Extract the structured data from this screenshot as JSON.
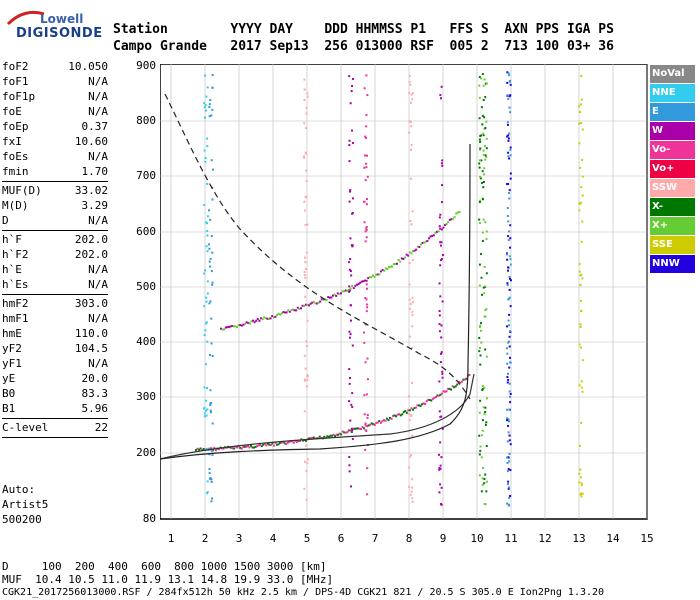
{
  "logo": {
    "line1": "Lowell",
    "line2": "DIGISONDE"
  },
  "header": {
    "labels": "Station        YYYY DAY    DDD HHMMSS P1   FFS S  AXN PPS IGA PS",
    "values": "Campo Grande   2017 Sep13  256 013000 RSF  005 2  713 100 03+ 36"
  },
  "params": [
    [
      {
        "k": "foF2",
        "v": "10.050"
      },
      {
        "k": "foF1",
        "v": "N/A"
      },
      {
        "k": "foF1p",
        "v": "N/A"
      },
      {
        "k": "foE",
        "v": "N/A"
      },
      {
        "k": "foEp",
        "v": "0.37"
      },
      {
        "k": "fxI",
        "v": "10.60"
      },
      {
        "k": "foEs",
        "v": "N/A"
      },
      {
        "k": "fmin",
        "v": "1.70"
      }
    ],
    [
      {
        "k": "MUF(D)",
        "v": "33.02"
      },
      {
        "k": "M(D)",
        "v": "3.29"
      },
      {
        "k": "D",
        "v": "N/A"
      }
    ],
    [
      {
        "k": "h`F",
        "v": "202.0"
      },
      {
        "k": "h`F2",
        "v": "202.0"
      },
      {
        "k": "h`E",
        "v": "N/A"
      },
      {
        "k": "h`Es",
        "v": "N/A"
      }
    ],
    [
      {
        "k": "hmF2",
        "v": "303.0"
      },
      {
        "k": "hmF1",
        "v": "N/A"
      },
      {
        "k": "hmE",
        "v": "110.0"
      },
      {
        "k": "yF2",
        "v": "104.5"
      },
      {
        "k": "yF1",
        "v": "N/A"
      },
      {
        "k": "yE",
        "v": "20.0"
      },
      {
        "k": "B0",
        "v": "83.3"
      },
      {
        "k": "B1",
        "v": "5.96"
      }
    ],
    [
      {
        "k": "C-level",
        "v": "22"
      }
    ]
  ],
  "auto": {
    "line1": "Auto:",
    "line2": "Artist5",
    "line3": "500200"
  },
  "legend": [
    {
      "label": "NoVal",
      "color": "#888888"
    },
    {
      "label": "NNE",
      "color": "#33ccee"
    },
    {
      "label": "E",
      "color": "#3399dd"
    },
    {
      "label": "W",
      "color": "#aa00aa"
    },
    {
      "label": "Vo-",
      "color": "#ee3399"
    },
    {
      "label": "Vo+",
      "color": "#ee0044"
    },
    {
      "label": "SSW",
      "color": "#ffaaaa"
    },
    {
      "label": "X-",
      "color": "#007700"
    },
    {
      "label": "X+",
      "color": "#66cc33"
    },
    {
      "label": "SSE",
      "color": "#cccc00"
    },
    {
      "label": "NNW",
      "color": "#2200dd"
    }
  ],
  "axes": {
    "y_ticks": [
      "900",
      "800",
      "700",
      "600",
      "500",
      "400",
      "300",
      "200",
      "80"
    ],
    "x_ticks": [
      "1",
      "2",
      "3",
      "4",
      "5",
      "6",
      "7",
      "8",
      "9",
      "10",
      "11",
      "12",
      "13",
      "14",
      "15"
    ]
  },
  "footer": {
    "line1": "D     100  200  400  600  800 1000 1500 3000 [km]",
    "line2": "MUF  10.4 10.5 11.0 11.9 13.1 14.8 19.9 33.0 [MHz]",
    "line3": "CGK21_2017256013000.RSF / 284fx512h 50 kHz 2.5 km / DPS-4D CGK21 821 / 20.5 S 305.0 E Ion2Png 1.3.20"
  }
}
